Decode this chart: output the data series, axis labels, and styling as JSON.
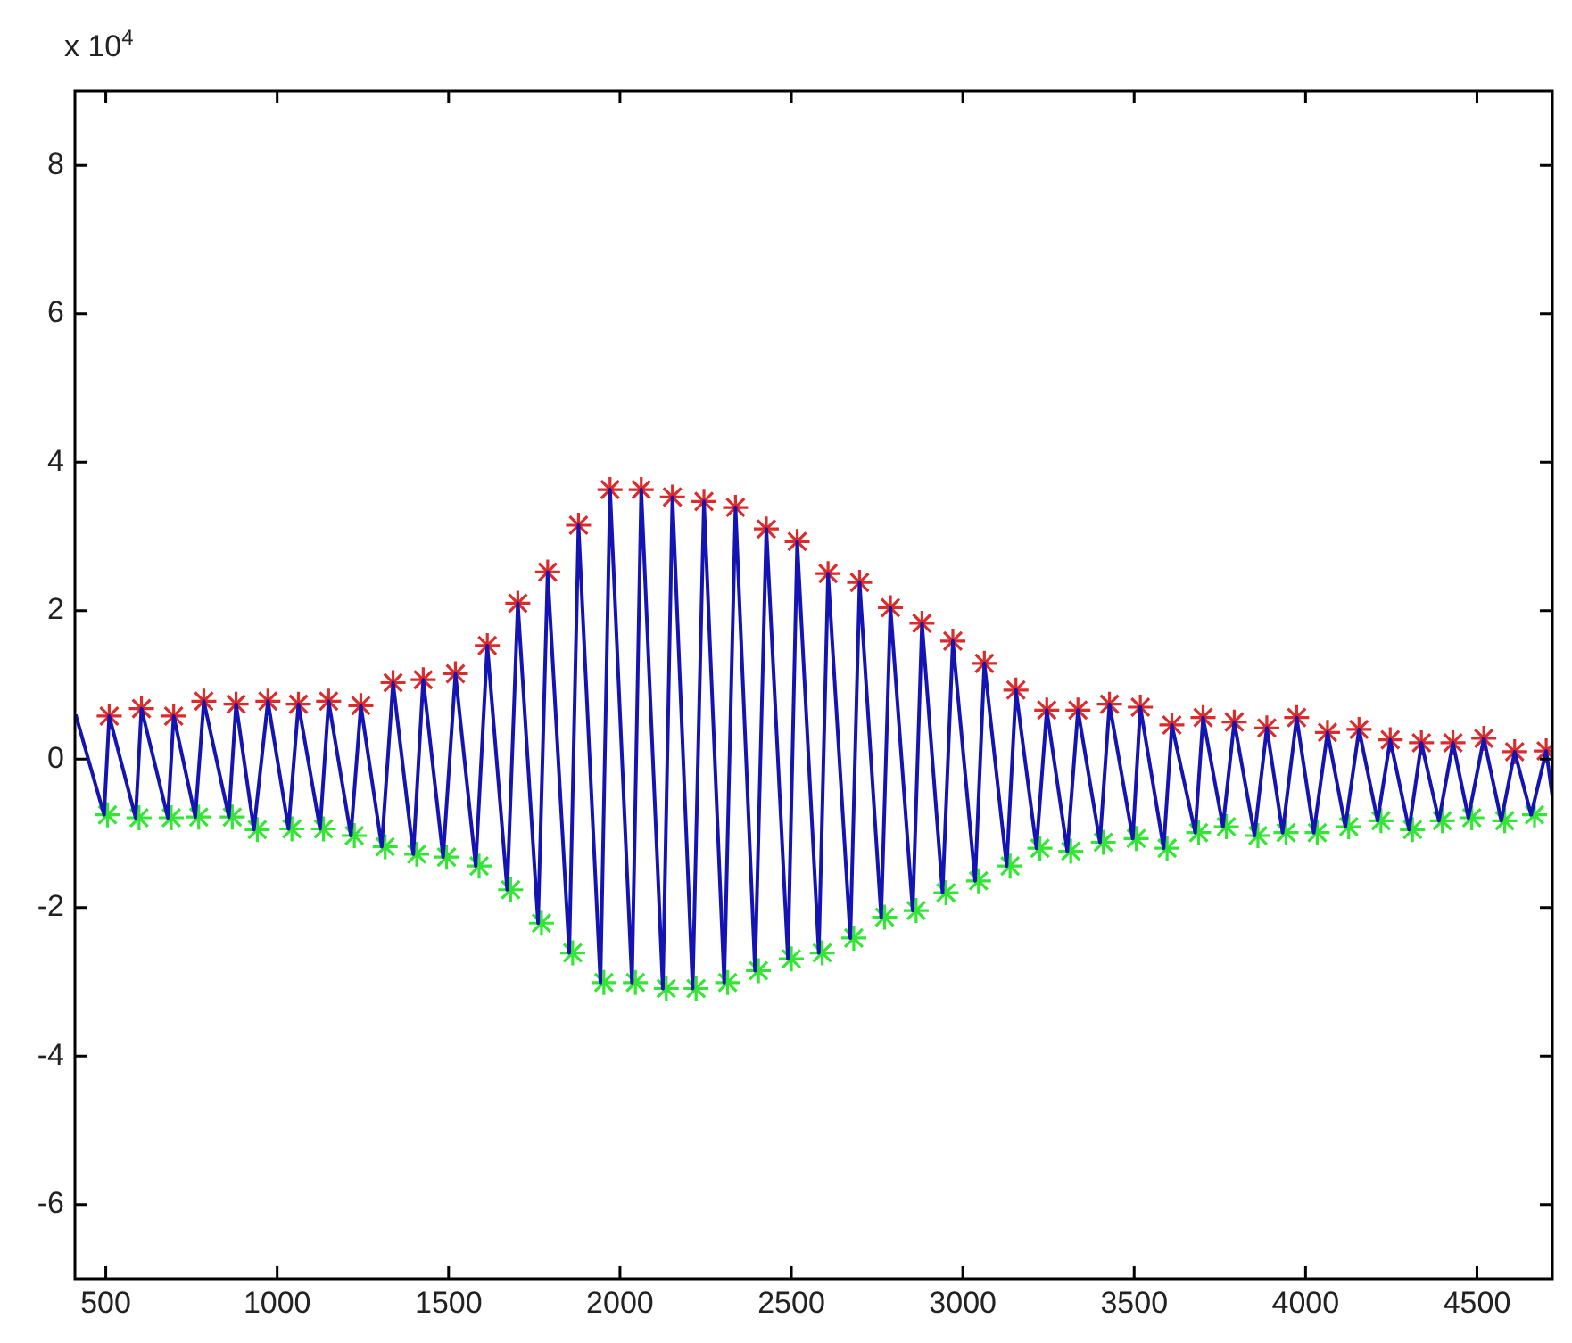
{
  "chart_data": {
    "type": "line",
    "annotations": [
      "x 10$^{4}$"
    ],
    "xlim": [
      410,
      4720
    ],
    "xticks": [
      500,
      1000,
      1500,
      2000,
      2500,
      3000,
      3500,
      4000,
      4500
    ],
    "ylim": [
      -7,
      9
    ],
    "yticks": [
      -6,
      -4,
      -2,
      0,
      2,
      4,
      6,
      8
    ],
    "grid": false,
    "legend": false,
    "series": [
      {
        "color": "#1414b4",
        "marker": "none",
        "line_style": "solid",
        "x": [
          412,
          495,
          510,
          587,
          604,
          681,
          698,
          761,
          786,
          859,
          880,
          932,
          973,
          1033,
          1062,
          1125,
          1150,
          1215,
          1244,
          1305,
          1338,
          1397,
          1426,
          1484,
          1520,
          1579,
          1613,
          1671,
          1702,
          1761,
          1789,
          1852,
          1879,
          1943,
          1971,
          2035,
          2062,
          2125,
          2153,
          2212,
          2245,
          2304,
          2337,
          2394,
          2427,
          2490,
          2517,
          2580,
          2607,
          2672,
          2699,
          2762,
          2789,
          2854,
          2881,
          2941,
          2971,
          3036,
          3063,
          3128,
          3155,
          3215,
          3245,
          3305,
          3336,
          3400,
          3428,
          3496,
          3518,
          3586,
          3610,
          3678,
          3701,
          3759,
          3792,
          3851,
          3887,
          3933,
          3974,
          4024,
          4064,
          4116,
          4156,
          4210,
          4247,
          4302,
          4338,
          4389,
          4430,
          4475,
          4520,
          4571,
          4610,
          4658,
          4702,
          4720
        ],
        "values": [
          0.6,
          -0.75,
          0.58,
          -0.79,
          0.68,
          -0.79,
          0.58,
          -0.78,
          0.78,
          -0.78,
          0.74,
          -0.95,
          0.78,
          -0.94,
          0.74,
          -0.94,
          0.78,
          -1.03,
          0.72,
          -1.18,
          1.03,
          -1.28,
          1.07,
          -1.32,
          1.15,
          -1.44,
          1.53,
          -1.76,
          2.1,
          -2.21,
          2.52,
          -2.61,
          3.15,
          -3.01,
          3.63,
          -3.01,
          3.63,
          -3.09,
          3.53,
          -3.09,
          3.47,
          -3.01,
          3.39,
          -2.85,
          3.1,
          -2.69,
          2.93,
          -2.61,
          2.5,
          -2.41,
          2.38,
          -2.13,
          2.04,
          -2.04,
          1.83,
          -1.8,
          1.59,
          -1.64,
          1.29,
          -1.44,
          0.93,
          -1.2,
          0.66,
          -1.24,
          0.66,
          -1.12,
          0.74,
          -1.07,
          0.7,
          -1.2,
          0.46,
          -0.99,
          0.56,
          -0.91,
          0.5,
          -1.03,
          0.42,
          -0.99,
          0.56,
          -0.99,
          0.36,
          -0.91,
          0.4,
          -0.83,
          0.26,
          -0.95,
          0.22,
          -0.83,
          0.22,
          -0.79,
          0.28,
          -0.83,
          0.1,
          -0.75,
          0.11,
          -0.5
        ]
      },
      {
        "type": "scatter",
        "color": "#dd2a2a",
        "marker": "cross",
        "x": [
          510,
          604,
          698,
          786,
          880,
          973,
          1062,
          1150,
          1244,
          1338,
          1426,
          1520,
          1613,
          1702,
          1789,
          1879,
          1971,
          2062,
          2153,
          2245,
          2337,
          2427,
          2517,
          2607,
          2699,
          2789,
          2881,
          2971,
          3063,
          3155,
          3245,
          3336,
          3428,
          3518,
          3610,
          3701,
          3792,
          3887,
          3974,
          4064,
          4156,
          4247,
          4338,
          4430,
          4520,
          4610,
          4702
        ],
        "values": [
          0.58,
          0.68,
          0.58,
          0.78,
          0.74,
          0.78,
          0.74,
          0.78,
          0.72,
          1.03,
          1.07,
          1.15,
          1.53,
          2.1,
          2.52,
          3.15,
          3.63,
          3.63,
          3.53,
          3.47,
          3.39,
          3.1,
          2.93,
          2.5,
          2.38,
          2.04,
          1.83,
          1.59,
          1.29,
          0.93,
          0.66,
          0.66,
          0.74,
          0.7,
          0.46,
          0.56,
          0.5,
          0.42,
          0.56,
          0.36,
          0.4,
          0.26,
          0.22,
          0.22,
          0.28,
          0.1,
          0.11
        ]
      },
      {
        "type": "scatter",
        "color": "#33e633",
        "marker": "cross",
        "x": [
          505,
          597,
          691,
          771,
          869,
          942,
          1043,
          1135,
          1225,
          1315,
          1407,
          1494,
          1589,
          1681,
          1771,
          1862,
          1953,
          2045,
          2135,
          2222,
          2314,
          2404,
          2500,
          2590,
          2682,
          2772,
          2864,
          2951,
          3046,
          3138,
          3225,
          3315,
          3410,
          3506,
          3596,
          3688,
          3769,
          3861,
          3943,
          4034,
          4126,
          4220,
          4312,
          4399,
          4485,
          4581,
          4668
        ],
        "values": [
          -0.75,
          -0.79,
          -0.79,
          -0.78,
          -0.78,
          -0.95,
          -0.94,
          -0.94,
          -1.03,
          -1.18,
          -1.28,
          -1.32,
          -1.44,
          -1.76,
          -2.21,
          -2.61,
          -3.01,
          -3.01,
          -3.09,
          -3.09,
          -3.01,
          -2.85,
          -2.69,
          -2.61,
          -2.41,
          -2.13,
          -2.04,
          -1.8,
          -1.64,
          -1.44,
          -1.2,
          -1.24,
          -1.12,
          -1.07,
          -1.2,
          -0.99,
          -0.91,
          -1.03,
          -0.99,
          -0.99,
          -0.91,
          -0.83,
          -0.95,
          -0.83,
          -0.79,
          -0.83,
          -0.75
        ]
      }
    ]
  }
}
